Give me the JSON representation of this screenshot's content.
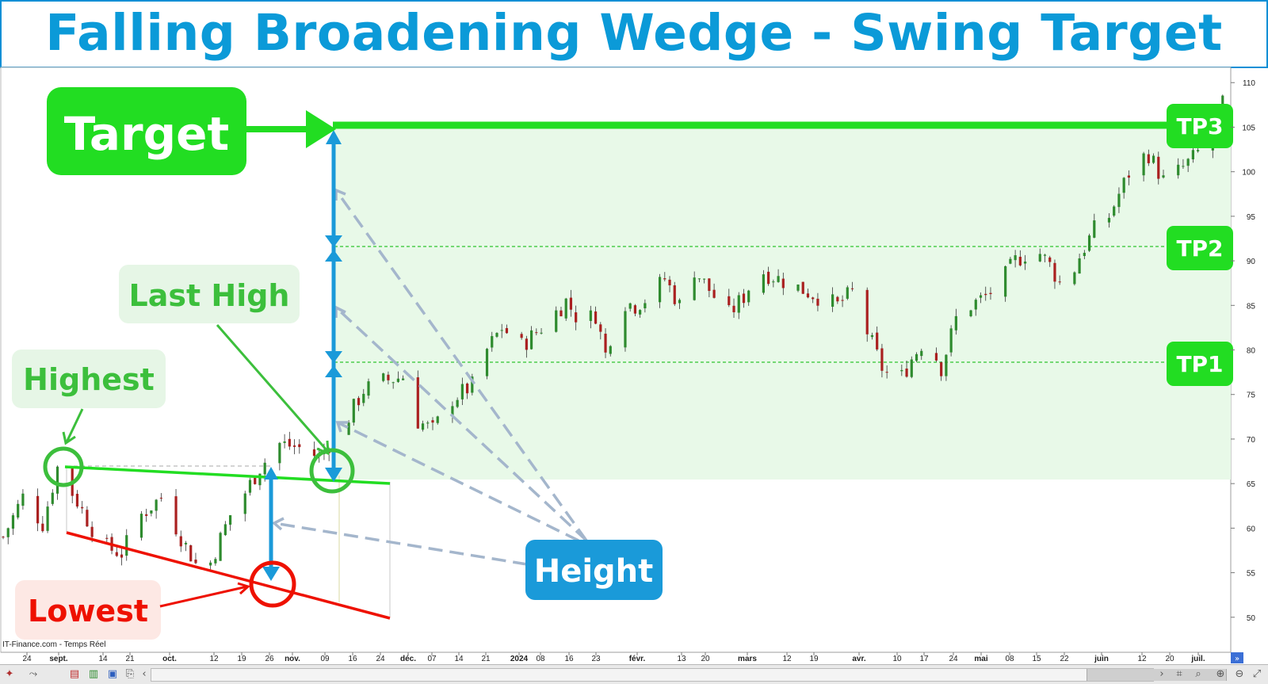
{
  "title": "Falling Broadening Wedge - Swing Target",
  "source_label": "IT-Finance.com - Temps Réel",
  "colors": {
    "title": "#0b9ad8",
    "green": "#22dd22",
    "green_label_text": "#3cbf3c",
    "green_label_bg": "#e6f6e6",
    "red": "#ee1100",
    "red_label_bg": "#fde8e4",
    "blue": "#1a9ad9",
    "arrow_grey": "#a4b6cc",
    "target_zone": "#e8f9e8",
    "candle_up": "#2e8b2e",
    "candle_down": "#aa2020"
  },
  "annotations": {
    "target": "Target",
    "last_high": "Last High",
    "highest": "Highest",
    "lowest": "Lowest",
    "height": "Height",
    "tp3": "TP3",
    "tp2": "TP2",
    "tp1": "TP1"
  },
  "chart_data": {
    "type": "candlestick",
    "ylim": [
      45,
      111
    ],
    "y_ticks": [
      "110",
      "105",
      "100",
      "95",
      "90",
      "85",
      "80",
      "75",
      "70",
      "65",
      "60",
      "55",
      "50"
    ],
    "x_ticks": [
      "24",
      "sept.",
      "14",
      "21",
      "oct.",
      "12",
      "19",
      "26",
      "nov.",
      "09",
      "16",
      "24",
      "déc.",
      "07",
      "14",
      "21",
      "2024",
      "08",
      "16",
      "23",
      "févr.",
      "13",
      "20",
      "mars",
      "12",
      "19",
      "avr.",
      "10",
      "17",
      "24",
      "mai",
      "08",
      "15",
      "22",
      "juin",
      "12",
      "20",
      "juil."
    ],
    "price_path": [
      {
        "d": 0,
        "p": 59
      },
      {
        "d": 8,
        "p": 63.5
      },
      {
        "d": 16,
        "p": 60.5
      },
      {
        "d": 22,
        "p": 66.8
      },
      {
        "d": 30,
        "p": 63
      },
      {
        "d": 40,
        "p": 58
      },
      {
        "d": 48,
        "p": 57.2
      },
      {
        "d": 56,
        "p": 61.5
      },
      {
        "d": 64,
        "p": 63.5
      },
      {
        "d": 72,
        "p": 59
      },
      {
        "d": 78,
        "p": 56
      },
      {
        "d": 82,
        "p": 54.8
      },
      {
        "d": 86,
        "p": 57.5
      },
      {
        "d": 92,
        "p": 61.5
      },
      {
        "d": 98,
        "p": 64
      },
      {
        "d": 104,
        "p": 66.8
      },
      {
        "d": 112,
        "p": 69.5
      },
      {
        "d": 120,
        "p": 69
      },
      {
        "d": 128,
        "p": 68
      },
      {
        "d": 138,
        "p": 71.5
      },
      {
        "d": 146,
        "p": 75.5
      },
      {
        "d": 154,
        "p": 76.5
      },
      {
        "d": 162,
        "p": 77
      },
      {
        "d": 168,
        "p": 72
      },
      {
        "d": 174,
        "p": 71
      },
      {
        "d": 182,
        "p": 74.5
      },
      {
        "d": 190,
        "p": 76
      },
      {
        "d": 196,
        "p": 80
      },
      {
        "d": 202,
        "p": 82.5
      },
      {
        "d": 210,
        "p": 80.5
      },
      {
        "d": 220,
        "p": 83
      },
      {
        "d": 228,
        "p": 85.5
      },
      {
        "d": 234,
        "p": 83
      },
      {
        "d": 240,
        "p": 84
      },
      {
        "d": 244,
        "p": 79.5
      },
      {
        "d": 250,
        "p": 85.5
      },
      {
        "d": 256,
        "p": 85
      },
      {
        "d": 262,
        "p": 86
      },
      {
        "d": 268,
        "p": 88
      },
      {
        "d": 274,
        "p": 85
      },
      {
        "d": 280,
        "p": 89
      },
      {
        "d": 288,
        "p": 86
      },
      {
        "d": 294,
        "p": 84
      },
      {
        "d": 300,
        "p": 86
      },
      {
        "d": 306,
        "p": 89
      },
      {
        "d": 314,
        "p": 88
      },
      {
        "d": 322,
        "p": 87
      },
      {
        "d": 330,
        "p": 86
      },
      {
        "d": 338,
        "p": 85
      },
      {
        "d": 344,
        "p": 86.5
      },
      {
        "d": 350,
        "p": 82
      },
      {
        "d": 356,
        "p": 78
      },
      {
        "d": 362,
        "p": 76
      },
      {
        "d": 368,
        "p": 79
      },
      {
        "d": 374,
        "p": 81.5
      },
      {
        "d": 380,
        "p": 78
      },
      {
        "d": 386,
        "p": 83.5
      },
      {
        "d": 392,
        "p": 85
      },
      {
        "d": 398,
        "p": 86
      },
      {
        "d": 404,
        "p": 87.5
      },
      {
        "d": 410,
        "p": 90
      },
      {
        "d": 418,
        "p": 91.5
      },
      {
        "d": 424,
        "p": 89.5
      },
      {
        "d": 430,
        "p": 86.5
      },
      {
        "d": 436,
        "p": 90.5
      },
      {
        "d": 442,
        "p": 93.5
      },
      {
        "d": 448,
        "p": 95
      },
      {
        "d": 452,
        "p": 97.5
      },
      {
        "d": 458,
        "p": 101
      },
      {
        "d": 464,
        "p": 102
      },
      {
        "d": 470,
        "p": 99
      },
      {
        "d": 476,
        "p": 100
      },
      {
        "d": 482,
        "p": 101.5
      },
      {
        "d": 488,
        "p": 103.5
      },
      {
        "d": 494,
        "p": 107.5
      }
    ]
  }
}
